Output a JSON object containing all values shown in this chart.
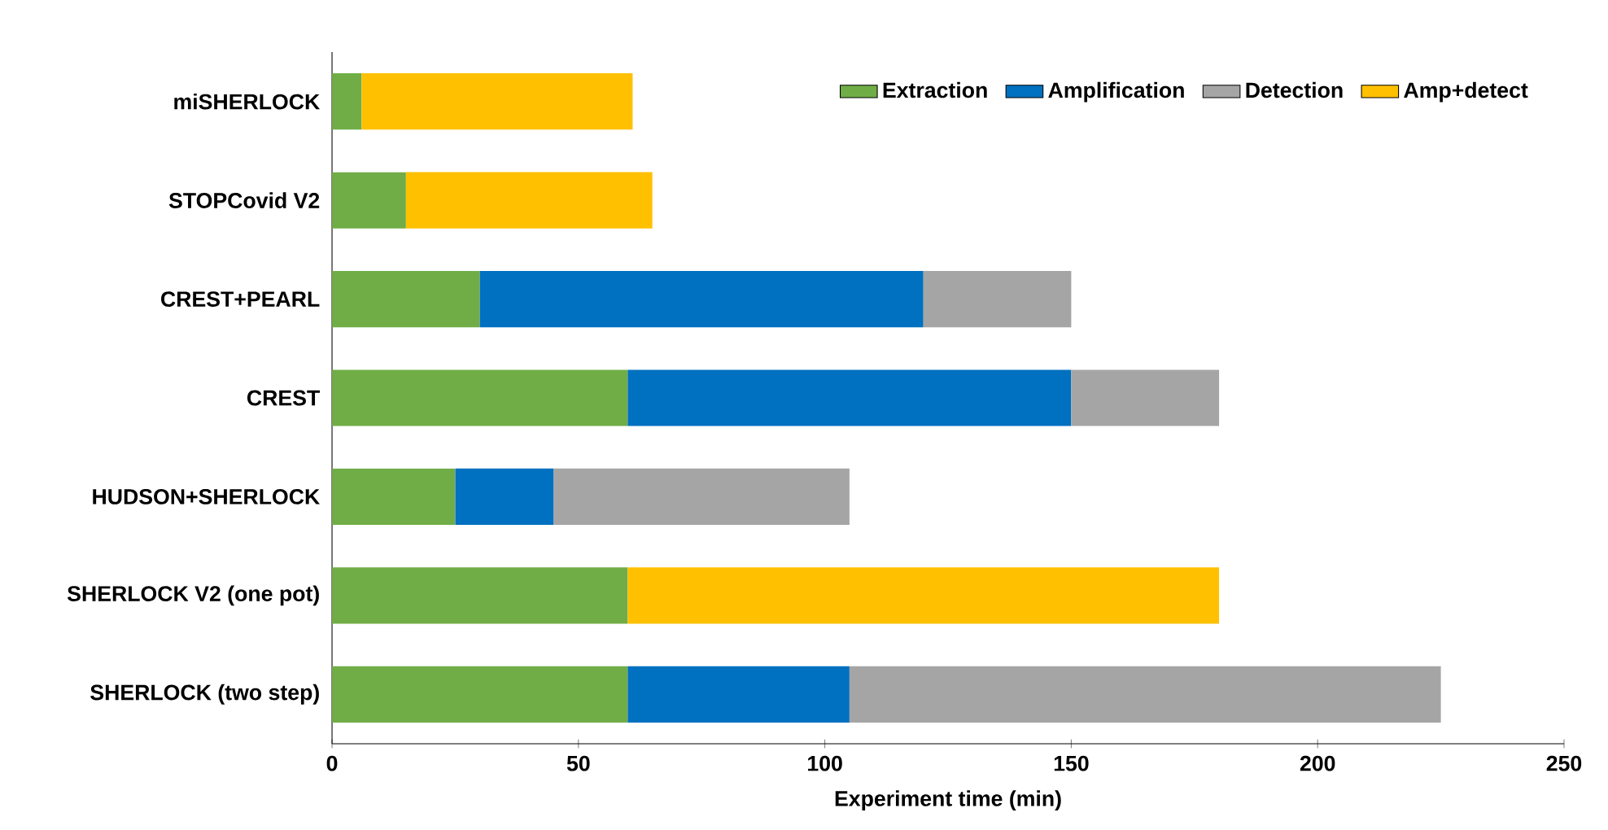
{
  "chart_data": {
    "type": "bar",
    "orientation": "horizontal",
    "stacked": true,
    "xlabel": "Experiment time (min)",
    "categories": [
      "miSHERLOCK",
      "STOPCovid V2",
      "CREST+PEARL",
      "CREST",
      "HUDSON+SHERLOCK",
      "SHERLOCK V2 (one pot)",
      "SHERLOCK (two step)"
    ],
    "series": [
      {
        "name": "Extraction",
        "color": "#70ad47",
        "values": [
          6,
          15,
          30,
          60,
          25,
          60,
          60
        ]
      },
      {
        "name": "Amplification",
        "color": "#0070c0",
        "values": [
          null,
          null,
          90,
          90,
          20,
          null,
          45
        ]
      },
      {
        "name": "Detection",
        "color": "#a5a5a5",
        "values": [
          null,
          null,
          30,
          30,
          60,
          null,
          120
        ]
      },
      {
        "name": "Amp+detect",
        "color": "#ffc000",
        "values": [
          55,
          50,
          null,
          null,
          null,
          120,
          null
        ]
      }
    ],
    "xlim": [
      0,
      250
    ],
    "xticks": [
      0,
      50,
      100,
      150,
      200,
      250
    ],
    "legend": "top right"
  }
}
